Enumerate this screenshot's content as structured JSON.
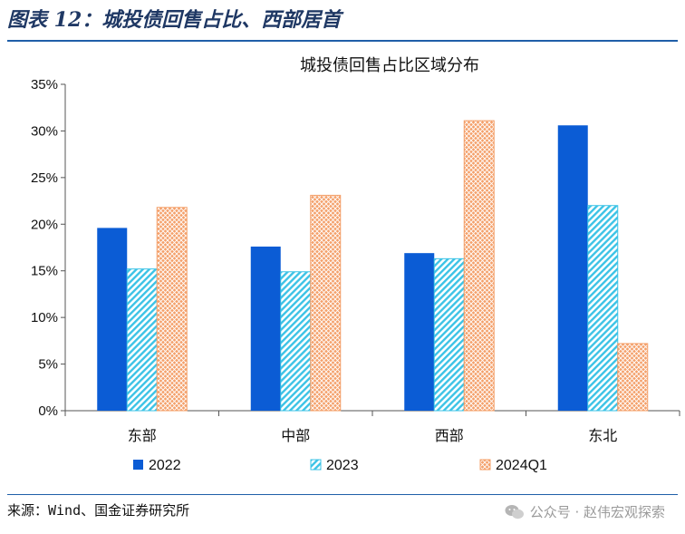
{
  "figure": {
    "title": "图表 12：城投债回售占比、西部居首",
    "source": "来源：Wind、国金证券研究所",
    "watermark": "公众号 · 赵伟宏观探索"
  },
  "colors": {
    "accent": "#1f5fa8",
    "series_2022": "#0b5cd5",
    "series_2023": "#3cc3e6",
    "series_2024Q1": "#f4a06a"
  },
  "chart_data": {
    "type": "bar",
    "title": "城投债回售占比区域分布",
    "categories": [
      "东部",
      "中部",
      "西部",
      "东北"
    ],
    "series": [
      {
        "name": "2022",
        "values": [
          19.6,
          17.6,
          16.9,
          30.6
        ]
      },
      {
        "name": "2023",
        "values": [
          15.2,
          14.9,
          16.3,
          22.0
        ]
      },
      {
        "name": "2024Q1",
        "values": [
          21.8,
          23.1,
          31.1,
          7.2
        ]
      }
    ],
    "ylim": [
      0,
      35
    ],
    "yticks": [
      0,
      5,
      10,
      15,
      20,
      25,
      30,
      35
    ],
    "ytick_labels": [
      "0%",
      "5%",
      "10%",
      "15%",
      "20%",
      "25%",
      "30%",
      "35%"
    ],
    "xlabel": "",
    "ylabel": "",
    "legend": "bottom",
    "grid": false
  }
}
